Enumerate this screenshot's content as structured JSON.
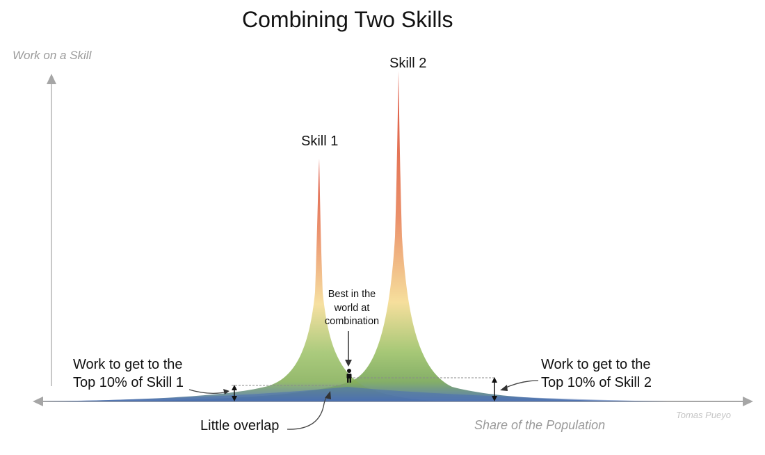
{
  "title": "Combining Two Skills",
  "axes": {
    "y_label": "Work on a Skill",
    "x_label": "Share of the Population"
  },
  "curves": [
    {
      "name": "Skill 1"
    },
    {
      "name": "Skill 2"
    }
  ],
  "annotations": {
    "skill1_top10": {
      "line1": "Work to get to the",
      "line2": "Top 10% of Skill 1"
    },
    "skill2_top10": {
      "line1": "Work to get to the",
      "line2": "Top 10% of Skill 2"
    },
    "best": {
      "line1": "Best in the",
      "line2": "world at",
      "line3": "combination"
    },
    "overlap": "Little overlap"
  },
  "credit": "Tomas Pueyo",
  "colors": {
    "peak_red": "#d9432e",
    "mid_yellow": "#f3d98f",
    "low_green": "#8cb85a",
    "base_blue": "#4a6fb0",
    "axis_gray": "#a6a6a6"
  }
}
